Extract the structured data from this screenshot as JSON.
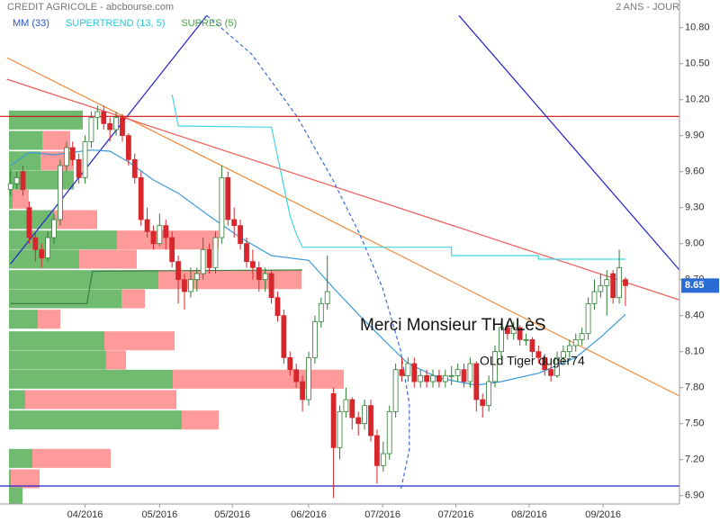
{
  "chart_data": {
    "type": "candlestick",
    "title": "CREDIT AGRICOLE - abcbourse.com",
    "subtitle": "2 ANS - JOUR",
    "candles": [
      [
        9.45,
        9.62,
        9.4,
        9.5
      ],
      [
        9.5,
        9.6,
        9.45,
        9.55
      ],
      [
        9.6,
        9.65,
        9.4,
        9.45
      ],
      [
        9.3,
        9.35,
        9.0,
        9.05
      ],
      [
        9.05,
        9.1,
        8.85,
        8.95
      ],
      [
        8.95,
        9.0,
        8.8,
        8.88
      ],
      [
        8.88,
        9.1,
        8.85,
        9.05
      ],
      [
        9.05,
        9.25,
        9.0,
        9.2
      ],
      [
        9.2,
        9.7,
        9.15,
        9.65
      ],
      [
        9.65,
        9.85,
        9.6,
        9.8
      ],
      [
        9.8,
        9.85,
        9.65,
        9.7
      ],
      [
        9.7,
        9.75,
        9.5,
        9.55
      ],
      [
        9.55,
        9.9,
        9.5,
        9.85
      ],
      [
        9.85,
        10.1,
        9.8,
        10.05
      ],
      [
        10.05,
        10.15,
        9.95,
        10.1
      ],
      [
        10.1,
        10.15,
        9.95,
        10.0
      ],
      [
        10.0,
        10.05,
        9.85,
        9.95
      ],
      [
        9.95,
        10.1,
        9.9,
        10.05
      ],
      [
        10.05,
        10.08,
        9.85,
        9.9
      ],
      [
        9.9,
        9.92,
        9.65,
        9.7
      ],
      [
        9.7,
        9.75,
        9.5,
        9.55
      ],
      [
        9.55,
        9.6,
        9.15,
        9.2
      ],
      [
        9.2,
        9.3,
        9.05,
        9.1
      ],
      [
        9.1,
        9.15,
        8.95,
        9.0
      ],
      [
        9.0,
        9.25,
        8.98,
        9.15
      ],
      [
        9.15,
        9.2,
        8.95,
        9.05
      ],
      [
        9.05,
        9.1,
        8.8,
        8.85
      ],
      [
        8.85,
        8.9,
        8.5,
        8.7
      ],
      [
        8.7,
        8.75,
        8.45,
        8.6
      ],
      [
        8.6,
        8.8,
        8.55,
        8.7
      ],
      [
        8.7,
        8.8,
        8.6,
        8.75
      ],
      [
        8.75,
        9.05,
        8.7,
        8.95
      ],
      [
        8.95,
        9.0,
        8.75,
        8.8
      ],
      [
        8.8,
        9.1,
        8.75,
        9.05
      ],
      [
        9.05,
        9.65,
        9.0,
        9.55
      ],
      [
        9.55,
        9.6,
        9.15,
        9.2
      ],
      [
        9.2,
        9.3,
        9.05,
        9.15
      ],
      [
        9.15,
        9.2,
        8.95,
        9.0
      ],
      [
        9.0,
        9.05,
        8.8,
        8.85
      ],
      [
        8.85,
        8.95,
        8.7,
        8.8
      ],
      [
        8.8,
        8.85,
        8.6,
        8.7
      ],
      [
        8.7,
        8.8,
        8.6,
        8.75
      ],
      [
        8.75,
        8.78,
        8.5,
        8.55
      ],
      [
        8.55,
        8.6,
        8.35,
        8.4
      ],
      [
        8.4,
        8.45,
        8.0,
        8.05
      ],
      [
        8.05,
        8.1,
        7.9,
        7.95
      ],
      [
        7.95,
        8.0,
        7.8,
        7.85
      ],
      [
        7.85,
        7.9,
        7.6,
        7.7
      ],
      [
        7.7,
        8.1,
        7.65,
        8.05
      ],
      [
        8.05,
        8.4,
        8.0,
        8.35
      ],
      [
        8.35,
        8.55,
        8.3,
        8.5
      ],
      [
        8.5,
        8.9,
        8.45,
        8.6
      ],
      [
        7.75,
        7.8,
        6.88,
        7.3
      ],
      [
        7.3,
        7.65,
        7.2,
        7.6
      ],
      [
        7.6,
        7.8,
        7.55,
        7.7
      ],
      [
        7.7,
        7.72,
        7.45,
        7.55
      ],
      [
        7.55,
        7.6,
        7.4,
        7.5
      ],
      [
        7.5,
        7.7,
        7.45,
        7.65
      ],
      [
        7.65,
        7.7,
        7.35,
        7.4
      ],
      [
        7.4,
        7.45,
        7.0,
        7.15
      ],
      [
        7.15,
        7.35,
        7.1,
        7.25
      ],
      [
        7.25,
        7.65,
        7.2,
        7.6
      ],
      [
        7.6,
        8.0,
        7.55,
        7.95
      ],
      [
        7.95,
        8.05,
        7.85,
        7.9
      ],
      [
        7.9,
        8.05,
        7.85,
        8.0
      ],
      [
        8.0,
        8.05,
        7.8,
        7.85
      ],
      [
        7.85,
        7.95,
        7.8,
        7.9
      ],
      [
        7.9,
        7.95,
        7.8,
        7.85
      ],
      [
        7.85,
        7.95,
        7.8,
        7.9
      ],
      [
        7.9,
        7.95,
        7.8,
        7.85
      ],
      [
        7.85,
        7.95,
        7.8,
        7.9
      ],
      [
        7.9,
        7.98,
        7.82,
        7.9
      ],
      [
        7.9,
        8.0,
        7.85,
        7.95
      ],
      [
        7.95,
        8.0,
        7.8,
        7.85
      ],
      [
        7.85,
        8.05,
        7.8,
        8.0
      ],
      [
        8.0,
        8.02,
        7.6,
        7.7
      ],
      [
        7.7,
        7.75,
        7.55,
        7.65
      ],
      [
        7.65,
        7.9,
        7.6,
        7.85
      ],
      [
        7.85,
        8.15,
        7.8,
        8.1
      ],
      [
        8.1,
        8.35,
        8.05,
        8.3
      ],
      [
        8.3,
        8.35,
        8.2,
        8.25
      ],
      [
        8.25,
        8.35,
        8.2,
        8.3
      ],
      [
        8.3,
        8.32,
        8.15,
        8.2
      ],
      [
        8.2,
        8.25,
        8.15,
        8.2
      ],
      [
        8.2,
        8.22,
        8.05,
        8.1
      ],
      [
        8.1,
        8.15,
        8.0,
        8.05
      ],
      [
        8.05,
        8.08,
        7.9,
        7.95
      ],
      [
        7.95,
        8.0,
        7.85,
        7.9
      ],
      [
        7.9,
        8.1,
        7.88,
        8.05
      ],
      [
        8.05,
        8.15,
        8.0,
        8.1
      ],
      [
        8.1,
        8.2,
        8.05,
        8.15
      ],
      [
        8.15,
        8.25,
        8.1,
        8.2
      ],
      [
        8.2,
        8.3,
        8.15,
        8.25
      ],
      [
        8.25,
        8.55,
        8.2,
        8.5
      ],
      [
        8.5,
        8.7,
        8.45,
        8.6
      ],
      [
        8.6,
        8.75,
        8.55,
        8.65
      ],
      [
        8.65,
        8.78,
        8.4,
        8.7
      ],
      [
        8.75,
        8.78,
        8.5,
        8.55
      ],
      [
        8.55,
        8.95,
        8.5,
        8.8
      ],
      [
        8.7,
        8.72,
        8.48,
        8.65
      ]
    ],
    "up_color": "#2e7d32",
    "down_color": "#d7262c",
    "series": [
      {
        "name": "MM (33)",
        "color": "#3a9ad9",
        "text_color": "#2a55d0",
        "x": [
          0,
          3,
          7,
          13,
          16,
          19,
          23,
          27,
          32,
          37,
          42,
          48,
          52,
          56,
          61,
          64,
          69,
          75,
          79,
          85,
          91,
          95,
          99
        ],
        "values": [
          9.65,
          9.76,
          9.74,
          9.78,
          9.77,
          9.68,
          9.53,
          9.42,
          9.23,
          9.05,
          8.9,
          8.86,
          8.63,
          8.41,
          8.15,
          8.0,
          7.88,
          7.82,
          7.85,
          7.92,
          8.05,
          8.22,
          8.41
        ]
      },
      {
        "name": "SUPERTREND (13, 5)",
        "color": "#3fd6e2",
        "text_color": "#29c7d6",
        "x": [
          26,
          27,
          42,
          45,
          46,
          47,
          71,
          71,
          85,
          85,
          99
        ],
        "values": [
          10.24,
          9.98,
          9.97,
          9.23,
          9.08,
          8.97,
          8.97,
          8.9,
          8.9,
          8.87,
          8.87
        ]
      },
      {
        "name": "SUPRES (5)",
        "color": "#70bb70",
        "text_color": "#4aa04a",
        "down_color": "#ff9a9a",
        "price": [
          10.03,
          9.86,
          9.69,
          9.53,
          9.37,
          9.2,
          9.03,
          8.87,
          8.7,
          8.54,
          8.37,
          8.19,
          8.03,
          7.87,
          7.7,
          7.53,
          7.21,
          7.04,
          6.89
        ],
        "up": [
          82,
          37,
          35,
          72,
          4,
          50,
          120,
          78,
          166,
          125,
          32,
          106,
          108,
          182,
          18,
          192,
          26,
          2,
          15
        ],
        "down": [
          0,
          31,
          37,
          0,
          18,
          48,
          113,
          64,
          159,
          26,
          25,
          78,
          22,
          190,
          168,
          41,
          87,
          32,
          0
        ]
      }
    ],
    "lines": [
      {
        "color": "#3c7a3c",
        "x": [
          0,
          12.3,
          13.2,
          47
        ],
        "values": [
          8.5,
          8.5,
          8.77,
          8.78
        ],
        "dash": false
      },
      {
        "color": "#2222cc",
        "x": [
          0,
          31.6
        ],
        "values": [
          8.83,
          10.9
        ],
        "dash": false
      },
      {
        "color": "#f08a3a",
        "x": [
          -0.6,
          107.7
        ],
        "values": [
          10.55,
          7.73
        ],
        "dash": false
      },
      {
        "color": "#f05a5a",
        "x": [
          -0.6,
          107.7
        ],
        "values": [
          10.37,
          8.53
        ],
        "dash": false
      },
      {
        "color": "#cc1111",
        "x": [
          -1.7,
          107.7
        ],
        "values": [
          10.06,
          10.06
        ],
        "dash": false
      },
      {
        "color": "#2222cc",
        "x": [
          -1.7,
          107.7
        ],
        "values": [
          6.98,
          6.98
        ],
        "dash": false
      },
      {
        "color": "#2222cc",
        "x": [
          72.2,
          107.7
        ],
        "values": [
          10.9,
          8.78
        ],
        "dash": false
      },
      {
        "color": "#3a6ad9",
        "x": [
          31.6,
          38.8,
          46.1,
          51.9,
          56.2,
          59.9,
          62.8,
          64.2,
          64.2,
          62.8
        ],
        "values": [
          10.9,
          10.58,
          10.06,
          9.53,
          9.08,
          8.63,
          8.11,
          7.66,
          7.28,
          6.94
        ],
        "dash": true
      }
    ],
    "annotations": [
      "Merci Monsieur THALèS",
      "OLd Tiger duger74"
    ],
    "last_price": {
      "value": 8.65,
      "label": "8.65"
    },
    "xlim": [
      -1.7,
      107.7
    ],
    "ylim": [
      6.83,
      11.03
    ],
    "xticks": [
      {
        "value": 12,
        "label": "04/2016"
      },
      {
        "value": 24,
        "label": "05/2016"
      },
      {
        "value": 35.7,
        "label": "05/2016"
      },
      {
        "value": 48,
        "label": "06/2016"
      },
      {
        "value": 59.9,
        "label": "07/2016"
      },
      {
        "value": 71.7,
        "label": "07/2016"
      },
      {
        "value": 83.5,
        "label": "08/2016"
      },
      {
        "value": 95.4,
        "label": "09/2016"
      }
    ],
    "yticks": [
      {
        "value": 6.9,
        "label": "6.90"
      },
      {
        "value": 7.2,
        "label": "7.20"
      },
      {
        "value": 7.5,
        "label": "7.50"
      },
      {
        "value": 7.8,
        "label": "7.80"
      },
      {
        "value": 8.1,
        "label": "8.10"
      },
      {
        "value": 8.4,
        "label": "8.40"
      },
      {
        "value": 8.7,
        "label": "8.70"
      },
      {
        "value": 9.0,
        "label": "9.00"
      },
      {
        "value": 9.3,
        "label": "9.30"
      },
      {
        "value": 9.6,
        "label": "9.60"
      },
      {
        "value": 9.9,
        "label": "9.90"
      },
      {
        "value": 10.2,
        "label": "10.20"
      },
      {
        "value": 10.5,
        "label": "10.50"
      },
      {
        "value": 10.8,
        "label": "10.80"
      }
    ]
  }
}
